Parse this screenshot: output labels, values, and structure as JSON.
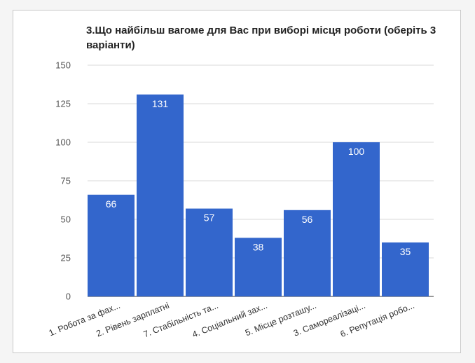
{
  "chart_data": {
    "type": "bar",
    "title": "3.Що найбільш вагоме для Вас при виборі місця роботи (оберіть 3 варіанти)",
    "categories": [
      "1. Робота за фах...",
      "2. Рівень зарплатні",
      "7. Стабільність та...",
      "4. Соціальний зах...",
      "5. Місце розташу...",
      "3. Самореалізаці...",
      "6. Репутація робо..."
    ],
    "values": [
      66,
      131,
      57,
      38,
      56,
      100,
      35
    ],
    "ylim": [
      0,
      150
    ],
    "yticks": [
      0,
      25,
      50,
      75,
      100,
      125,
      150
    ],
    "grid": true,
    "legend": "none",
    "bar_color": "#3366cc",
    "grid_color": "#d9d9d9"
  }
}
